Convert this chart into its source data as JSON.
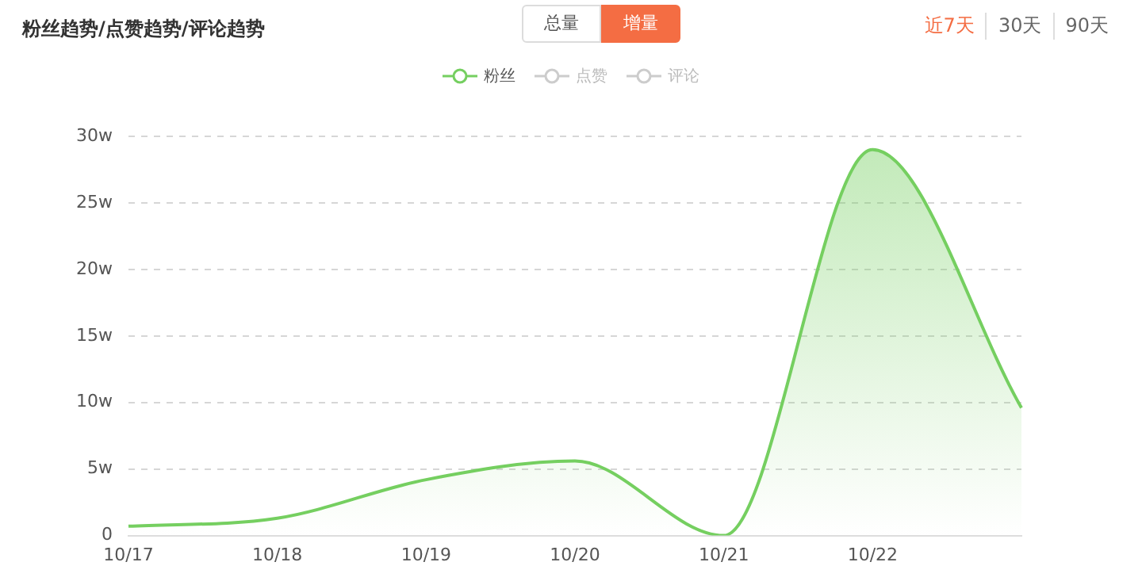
{
  "chart_data": {
    "type": "area",
    "title": "粉丝趋势/点赞趋势/评论趋势",
    "annotations": [
      "总量",
      "增量",
      "近7天",
      "30天",
      "90天"
    ],
    "categories": [
      "10/17",
      "10/18",
      "10/19",
      "10/20",
      "10/21",
      "10/22",
      null
    ],
    "series": [
      {
        "name": "粉丝",
        "color": "#75cf60",
        "values": [
          0.7,
          1.3,
          4.2,
          5.6,
          0,
          29,
          9.6
        ]
      },
      {
        "name": "点赞",
        "color": "#cccccc",
        "values": [
          null,
          null,
          null,
          null,
          null,
          null,
          null
        ]
      },
      {
        "name": "评论",
        "color": "#cccccc",
        "values": [
          null,
          null,
          null,
          null,
          null,
          null,
          null
        ]
      }
    ],
    "ylim": [
      0,
      30
    ],
    "yticks": [
      0,
      {
        "value": 5,
        "label": "5w"
      },
      {
        "value": 10,
        "label": "10w"
      },
      {
        "value": 15,
        "label": "15w"
      },
      {
        "value": 20,
        "label": "20w"
      },
      {
        "value": 25,
        "label": "25w"
      },
      {
        "value": 30,
        "label": "30w"
      }
    ],
    "grid": "y",
    "legend": "top",
    "marker": "none",
    "line_style": "solid"
  }
}
